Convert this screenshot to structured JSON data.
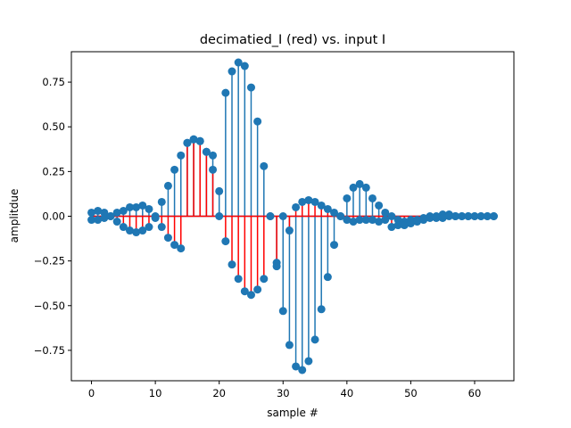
{
  "chart_data": {
    "type": "stem",
    "title": "decimatied_I (red) vs. input I",
    "xlabel": "sample #",
    "ylabel": "amplitdue",
    "xlim": [
      -3.15,
      66.15
    ],
    "ylim": [
      -0.92,
      0.92
    ],
    "x_ticks": [
      0,
      10,
      20,
      30,
      40,
      50,
      60
    ],
    "y_ticks": [
      -0.75,
      -0.5,
      -0.25,
      0.0,
      0.25,
      0.5,
      0.75
    ],
    "y_tick_labels": [
      "−0.75",
      "−0.50",
      "−0.25",
      "0.00",
      "0.25",
      "0.50",
      "0.75"
    ],
    "grid": false,
    "legend": "none",
    "colors": {
      "input": "#1f77b4",
      "decimated": "#ff0000",
      "axes": "#000000"
    },
    "series": [
      {
        "role": "input-I",
        "x": [
          0,
          1,
          2,
          3,
          4,
          5,
          6,
          7,
          8,
          9,
          10,
          11,
          12,
          13,
          14,
          15,
          16,
          17,
          18,
          19,
          20,
          21,
          22,
          23,
          24,
          25,
          26,
          27,
          28,
          29,
          30,
          31,
          32,
          33,
          34,
          35,
          36,
          37,
          38,
          39,
          40,
          41,
          42,
          43,
          44,
          45,
          46,
          47,
          48,
          49,
          50,
          51,
          52,
          53,
          54,
          55,
          56,
          57,
          58,
          59,
          60,
          61,
          62,
          63
        ],
        "values": [
          0.02,
          0.03,
          0.02,
          0.0,
          0.02,
          0.03,
          0.05,
          0.05,
          0.06,
          0.04,
          -0.01,
          0.08,
          0.17,
          0.26,
          0.34,
          0.41,
          0.43,
          0.42,
          0.36,
          0.34,
          0.14,
          0.69,
          0.81,
          0.86,
          0.84,
          0.72,
          0.53,
          0.28,
          0.0,
          -0.26,
          -0.53,
          -0.72,
          -0.84,
          -0.86,
          -0.81,
          -0.69,
          -0.52,
          -0.34,
          -0.16,
          0.0,
          0.1,
          0.16,
          0.18,
          0.16,
          0.1,
          0.06,
          0.02,
          0.0,
          -0.02,
          -0.03,
          -0.02,
          -0.02,
          -0.01,
          0.0,
          0.0,
          0.01,
          0.01,
          0.0,
          0.0,
          0.0,
          0.0,
          0.0,
          0.0,
          0.0
        ]
      },
      {
        "role": "decimated-I",
        "x": [
          0,
          1,
          2,
          3,
          4,
          5,
          6,
          7,
          8,
          9,
          10,
          11,
          12,
          13,
          14,
          15,
          16,
          17,
          18,
          19,
          20,
          21,
          22,
          23,
          24,
          25,
          26,
          27,
          28,
          29,
          30,
          31,
          32,
          33,
          34,
          35,
          36,
          37,
          38,
          39,
          40,
          41,
          42,
          43,
          44,
          45,
          46,
          47,
          48,
          49,
          50,
          51,
          52,
          53,
          54,
          55,
          56,
          57,
          58,
          59,
          60,
          61,
          62,
          63
        ],
        "values": [
          -0.02,
          -0.02,
          -0.01,
          0.0,
          -0.03,
          -0.06,
          -0.08,
          -0.09,
          -0.08,
          -0.06,
          0.0,
          -0.06,
          -0.12,
          -0.16,
          -0.18,
          0.41,
          0.43,
          0.42,
          0.36,
          0.26,
          0.0,
          -0.14,
          -0.27,
          -0.35,
          -0.42,
          -0.44,
          -0.41,
          -0.35,
          0.0,
          -0.28,
          0.0,
          -0.08,
          0.05,
          0.08,
          0.09,
          0.08,
          0.06,
          0.04,
          0.02,
          0.0,
          -0.02,
          -0.03,
          -0.02,
          -0.02,
          -0.02,
          -0.03,
          -0.02,
          -0.06,
          -0.05,
          -0.05,
          -0.04,
          -0.03,
          -0.02,
          -0.01,
          -0.01,
          -0.01,
          0.0,
          0.0,
          0.0,
          0.0,
          0.0,
          0.0,
          0.0,
          0.0
        ]
      }
    ]
  }
}
